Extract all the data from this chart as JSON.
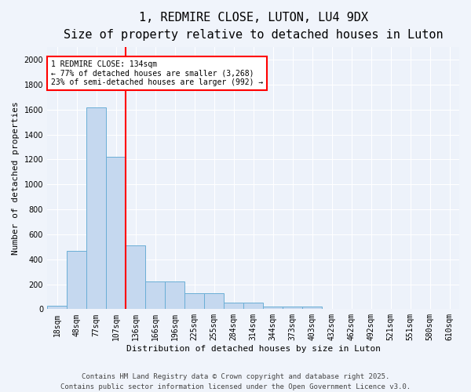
{
  "title": "1, REDMIRE CLOSE, LUTON, LU4 9DX",
  "subtitle": "Size of property relative to detached houses in Luton",
  "xlabel": "Distribution of detached houses by size in Luton",
  "ylabel": "Number of detached properties",
  "categories": [
    "18sqm",
    "48sqm",
    "77sqm",
    "107sqm",
    "136sqm",
    "166sqm",
    "196sqm",
    "225sqm",
    "255sqm",
    "284sqm",
    "314sqm",
    "344sqm",
    "373sqm",
    "403sqm",
    "432sqm",
    "462sqm",
    "492sqm",
    "521sqm",
    "551sqm",
    "580sqm",
    "610sqm"
  ],
  "values": [
    30,
    470,
    1620,
    1220,
    510,
    225,
    225,
    130,
    130,
    50,
    50,
    20,
    20,
    20,
    0,
    0,
    0,
    0,
    0,
    0,
    0
  ],
  "bar_color": "#c5d8ef",
  "bar_edge_color": "#6aaed6",
  "red_line_index": 4,
  "annotation_text": "1 REDMIRE CLOSE: 134sqm\n← 77% of detached houses are smaller (3,268)\n23% of semi-detached houses are larger (992) →",
  "annotation_box_facecolor": "white",
  "annotation_box_edgecolor": "red",
  "ylim": [
    0,
    2100
  ],
  "yticks": [
    0,
    200,
    400,
    600,
    800,
    1000,
    1200,
    1400,
    1600,
    1800,
    2000
  ],
  "bg_color": "#f0f4fb",
  "plot_bg_color": "#edf2fa",
  "grid_color": "white",
  "footer_line1": "Contains HM Land Registry data © Crown copyright and database right 2025.",
  "footer_line2": "Contains public sector information licensed under the Open Government Licence v3.0.",
  "title_fontsize": 11,
  "subtitle_fontsize": 9,
  "xlabel_fontsize": 8,
  "ylabel_fontsize": 8,
  "tick_fontsize": 7,
  "annotation_fontsize": 7,
  "footer_fontsize": 6.5
}
